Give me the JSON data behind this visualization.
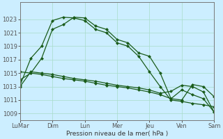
{
  "background_color": "#cceeff",
  "grid_color": "#aaddcc",
  "line_color": "#1a5c1a",
  "xlabel": "Pression niveau de la mer( hPa )",
  "ylim": [
    1008,
    1025.5
  ],
  "yticks": [
    1009,
    1011,
    1013,
    1015,
    1017,
    1019,
    1021,
    1023
  ],
  "xlim": [
    0,
    18
  ],
  "xlabel_days": [
    "LuMar",
    "Dim",
    "Lun",
    "Mer",
    "Jeu",
    "Ven",
    "Sam"
  ],
  "xtick_pos": [
    0,
    3,
    6,
    9,
    12,
    15,
    18
  ],
  "series1_x": [
    0,
    1,
    2,
    3,
    4,
    5,
    6,
    7,
    8,
    9,
    10,
    11,
    12,
    13,
    14,
    15,
    16,
    17,
    18
  ],
  "series1_y": [
    1014.0,
    1015.0,
    1017.2,
    1021.5,
    1022.2,
    1023.3,
    1023.2,
    1022.0,
    1021.5,
    1020.0,
    1019.5,
    1018.0,
    1017.5,
    1015.0,
    1011.2,
    1011.0,
    1013.3,
    1013.0,
    1011.5
  ],
  "series2_x": [
    0,
    1,
    2,
    3,
    4,
    5,
    6,
    7,
    8,
    9,
    10,
    11,
    12,
    13,
    14,
    15,
    16,
    17,
    18
  ],
  "series2_y": [
    1013.2,
    1017.2,
    1019.0,
    1022.8,
    1023.3,
    1023.2,
    1022.8,
    1021.5,
    1021.0,
    1019.5,
    1019.0,
    1017.5,
    1015.2,
    1013.0,
    1011.0,
    1010.8,
    1010.5,
    1010.3,
    1010.0
  ],
  "series3_x": [
    0,
    1,
    2,
    3,
    4,
    5,
    6,
    7,
    8,
    9,
    10,
    11,
    12,
    13,
    14,
    15,
    16,
    17,
    18
  ],
  "series3_y": [
    1015.2,
    1015.0,
    1014.8,
    1014.5,
    1014.2,
    1014.0,
    1013.8,
    1013.5,
    1013.2,
    1013.0,
    1012.8,
    1012.5,
    1012.2,
    1011.8,
    1011.2,
    1012.5,
    1011.8,
    1011.2,
    1009.2
  ],
  "series4_x": [
    0,
    1,
    2,
    3,
    4,
    5,
    6,
    7,
    8,
    9,
    10,
    11,
    12,
    13,
    14,
    15,
    16,
    17,
    18
  ],
  "series4_y": [
    1013.0,
    1015.2,
    1015.0,
    1014.8,
    1014.5,
    1014.2,
    1014.0,
    1013.8,
    1013.5,
    1013.2,
    1013.0,
    1012.8,
    1012.5,
    1012.0,
    1012.3,
    1013.2,
    1013.0,
    1012.2,
    1009.2
  ]
}
